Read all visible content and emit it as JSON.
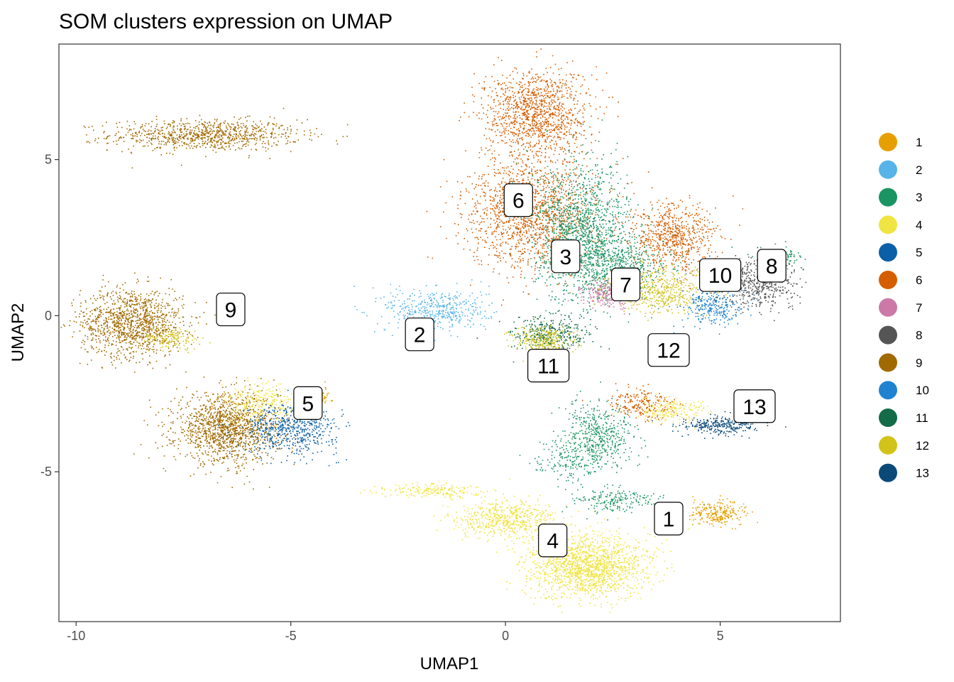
{
  "chart_data": {
    "type": "scatter",
    "title": "SOM clusters expression on UMAP",
    "xlabel": "UMAP1",
    "ylabel": "UMAP2",
    "xlim": [
      -10.4,
      7.8
    ],
    "ylim": [
      -9.8,
      8.7
    ],
    "x_ticks": [
      {
        "value": -10,
        "label": "-10"
      },
      {
        "value": -5,
        "label": "-5"
      },
      {
        "value": 0,
        "label": "0"
      },
      {
        "value": 5,
        "label": "5"
      }
    ],
    "y_ticks": [
      {
        "value": 5,
        "label": "5"
      },
      {
        "value": 0,
        "label": "0"
      },
      {
        "value": -5,
        "label": "-5"
      }
    ],
    "grid": false,
    "legend_position": "right",
    "series": [
      {
        "name": "1",
        "color": "#E69F00"
      },
      {
        "name": "2",
        "color": "#56B4E9"
      },
      {
        "name": "3",
        "color": "#1B9464"
      },
      {
        "name": "4",
        "color": "#F0E442"
      },
      {
        "name": "5",
        "color": "#0A5FA6"
      },
      {
        "name": "6",
        "color": "#D55E00"
      },
      {
        "name": "7",
        "color": "#CC79A7"
      },
      {
        "name": "8",
        "color": "#555555"
      },
      {
        "name": "9",
        "color": "#A16A00"
      },
      {
        "name": "10",
        "color": "#1F83D0"
      },
      {
        "name": "11",
        "color": "#136B48"
      },
      {
        "name": "12",
        "color": "#D1C31A"
      },
      {
        "name": "13",
        "color": "#0B4A78"
      }
    ],
    "point_clusters": [
      {
        "series": "9",
        "cx": -7.0,
        "cy": 5.8,
        "sx": 1.1,
        "sy": 0.25,
        "n": 900
      },
      {
        "series": "9",
        "cx": -8.7,
        "cy": -0.2,
        "sx": 0.6,
        "sy": 0.55,
        "n": 1200
      },
      {
        "series": "12",
        "cx": -7.8,
        "cy": -0.7,
        "sx": 0.35,
        "sy": 0.18,
        "n": 160
      },
      {
        "series": "9",
        "cx": -6.5,
        "cy": -3.6,
        "sx": 0.6,
        "sy": 0.55,
        "n": 1400
      },
      {
        "series": "4",
        "cx": -5.7,
        "cy": -2.8,
        "sx": 0.5,
        "sy": 0.3,
        "n": 300
      },
      {
        "series": "5",
        "cx": -5.0,
        "cy": -3.6,
        "sx": 0.55,
        "sy": 0.4,
        "n": 600
      },
      {
        "series": "1",
        "cx": -4.3,
        "cy": -2.6,
        "sx": 0.12,
        "sy": 0.15,
        "n": 50
      },
      {
        "series": "2",
        "cx": -1.6,
        "cy": 0.2,
        "sx": 0.6,
        "sy": 0.35,
        "n": 450
      },
      {
        "series": "6",
        "cx": 0.7,
        "cy": 6.5,
        "sx": 0.6,
        "sy": 0.7,
        "n": 1200
      },
      {
        "series": "6",
        "cx": 0.6,
        "cy": 3.3,
        "sx": 0.75,
        "sy": 0.9,
        "n": 1500
      },
      {
        "series": "6",
        "cx": 3.9,
        "cy": 2.5,
        "sx": 0.5,
        "sy": 0.55,
        "n": 700
      },
      {
        "series": "3",
        "cx": 1.8,
        "cy": 2.7,
        "sx": 0.55,
        "sy": 1.1,
        "n": 1400
      },
      {
        "series": "3",
        "cx": 2.6,
        "cy": 1.6,
        "sx": 0.6,
        "sy": 0.45,
        "n": 500
      },
      {
        "series": "12",
        "cx": 3.6,
        "cy": 0.8,
        "sx": 0.6,
        "sy": 0.35,
        "n": 500
      },
      {
        "series": "7",
        "cx": 2.4,
        "cy": 0.7,
        "sx": 0.3,
        "sy": 0.2,
        "n": 260
      },
      {
        "series": "10",
        "cx": 4.8,
        "cy": 0.3,
        "sx": 0.35,
        "sy": 0.3,
        "n": 280
      },
      {
        "series": "8",
        "cx": 5.9,
        "cy": 1.1,
        "sx": 0.45,
        "sy": 0.4,
        "n": 550
      },
      {
        "series": "3",
        "cx": 6.3,
        "cy": 1.9,
        "sx": 0.3,
        "sy": 0.15,
        "n": 120
      },
      {
        "series": "11",
        "cx": 1.0,
        "cy": -0.6,
        "sx": 0.45,
        "sy": 0.3,
        "n": 350
      },
      {
        "series": "12",
        "cx": 0.9,
        "cy": -0.8,
        "sx": 0.35,
        "sy": 0.25,
        "n": 300
      },
      {
        "series": "13",
        "cx": 5.0,
        "cy": -3.5,
        "sx": 0.45,
        "sy": 0.15,
        "n": 300
      },
      {
        "series": "4",
        "cx": 3.8,
        "cy": -3.0,
        "sx": 0.45,
        "sy": 0.2,
        "n": 220
      },
      {
        "series": "3",
        "cx": 2.2,
        "cy": -3.8,
        "sx": 0.4,
        "sy": 0.5,
        "n": 450
      },
      {
        "series": "6",
        "cx": 3.2,
        "cy": -2.8,
        "sx": 0.4,
        "sy": 0.25,
        "n": 200
      },
      {
        "series": "3",
        "cx": 1.5,
        "cy": -4.6,
        "sx": 0.4,
        "sy": 0.3,
        "n": 200
      },
      {
        "series": "4",
        "cx": 1.9,
        "cy": -8.0,
        "sx": 0.7,
        "sy": 0.5,
        "n": 1600
      },
      {
        "series": "4",
        "cx": 0.0,
        "cy": -6.5,
        "sx": 0.6,
        "sy": 0.3,
        "n": 600
      },
      {
        "series": "4",
        "cx": -1.8,
        "cy": -5.6,
        "sx": 0.6,
        "sy": 0.12,
        "n": 200
      },
      {
        "series": "3",
        "cx": 2.5,
        "cy": -5.9,
        "sx": 0.5,
        "sy": 0.2,
        "n": 200
      },
      {
        "series": "1",
        "cx": 4.9,
        "cy": -6.3,
        "sx": 0.35,
        "sy": 0.2,
        "n": 250
      }
    ],
    "cluster_labels": [
      {
        "label": "1",
        "x": 3.8,
        "y": -6.5
      },
      {
        "label": "2",
        "x": -2.0,
        "y": -0.6
      },
      {
        "label": "3",
        "x": 1.4,
        "y": 1.9
      },
      {
        "label": "4",
        "x": 1.1,
        "y": -7.2
      },
      {
        "label": "5",
        "x": -4.6,
        "y": -2.8
      },
      {
        "label": "6",
        "x": 0.3,
        "y": 3.7
      },
      {
        "label": "7",
        "x": 2.8,
        "y": 1.0
      },
      {
        "label": "8",
        "x": 6.2,
        "y": 1.6
      },
      {
        "label": "9",
        "x": -6.4,
        "y": 0.2
      },
      {
        "label": "10",
        "x": 5.0,
        "y": 1.3
      },
      {
        "label": "11",
        "x": 1.0,
        "y": -1.6
      },
      {
        "label": "12",
        "x": 3.8,
        "y": -1.1
      },
      {
        "label": "13",
        "x": 5.8,
        "y": -2.9
      }
    ]
  }
}
